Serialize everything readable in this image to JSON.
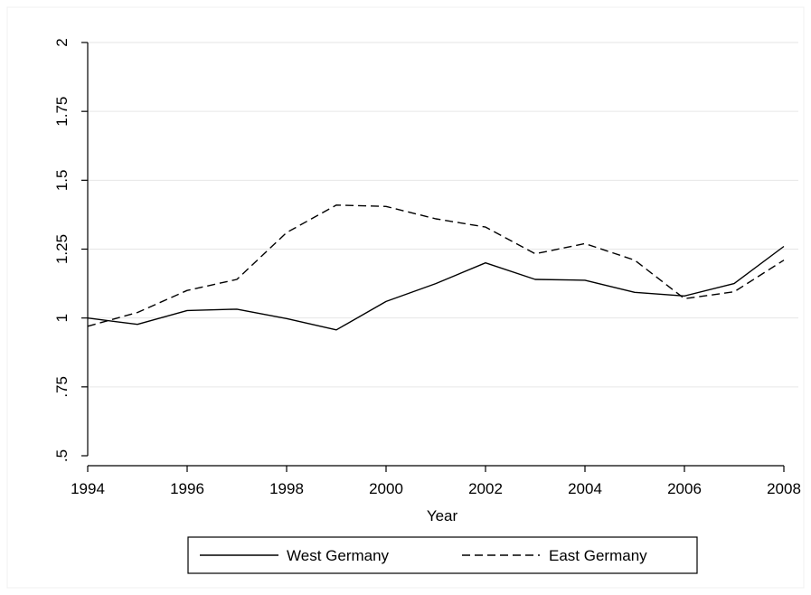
{
  "chart_data": {
    "type": "line",
    "title": "",
    "xlabel": "Year",
    "ylabel": "",
    "xlim": [
      1994,
      2008
    ],
    "ylim": [
      0.5,
      2
    ],
    "x_ticks": [
      1994,
      1996,
      1998,
      2000,
      2002,
      2004,
      2006,
      2008
    ],
    "x_tick_labels": [
      "1994",
      "1996",
      "1998",
      "2000",
      "2002",
      "2004",
      "2006",
      "2008"
    ],
    "y_ticks": [
      0.5,
      0.75,
      1,
      1.25,
      1.5,
      1.75,
      2
    ],
    "y_tick_labels": [
      ".5",
      ".75",
      "1",
      "1.25",
      "1.5",
      "1.75",
      "2"
    ],
    "grid": true,
    "legend_position": "bottom",
    "x": [
      1994,
      1995,
      1996,
      1997,
      1998,
      1999,
      2000,
      2001,
      2002,
      2003,
      2004,
      2005,
      2006,
      2007,
      2008
    ],
    "series": [
      {
        "name": "West Germany",
        "style": "solid",
        "values": [
          1.0,
          0.977,
          1.027,
          1.032,
          0.998,
          0.957,
          1.06,
          1.125,
          1.2,
          1.14,
          1.137,
          1.093,
          1.08,
          1.125,
          1.26
        ]
      },
      {
        "name": "East Germany",
        "style": "dashed",
        "values": [
          0.97,
          1.02,
          1.1,
          1.14,
          1.31,
          1.41,
          1.405,
          1.36,
          1.33,
          1.233,
          1.27,
          1.21,
          1.07,
          1.095,
          1.21
        ]
      }
    ],
    "colors": {
      "line": "#000000",
      "grid": "#e6e6e6",
      "axis": "#000000"
    }
  }
}
